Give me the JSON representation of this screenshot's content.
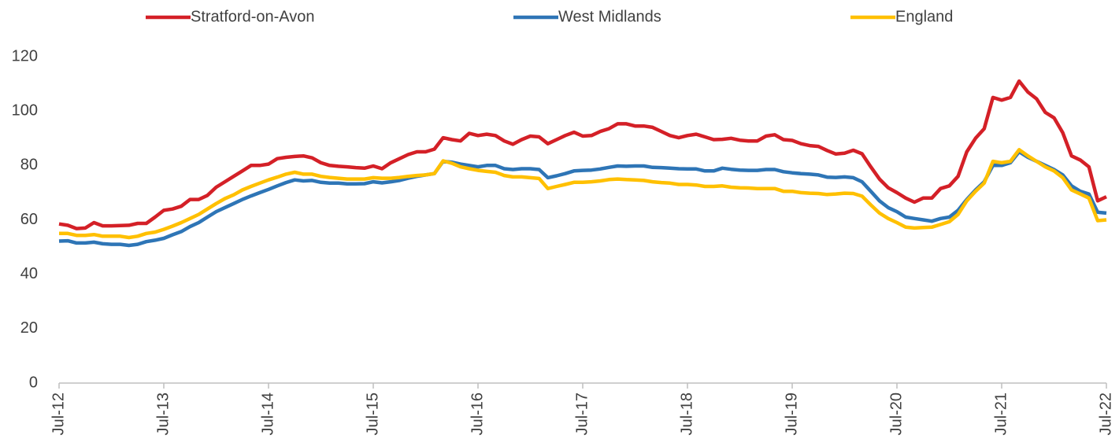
{
  "chart_data": {
    "type": "line",
    "categories": [
      "Jul-12",
      null,
      null,
      null,
      null,
      null,
      null,
      null,
      null,
      null,
      null,
      null,
      "Jul-13",
      null,
      null,
      null,
      null,
      null,
      null,
      null,
      null,
      null,
      null,
      null,
      "Jul-14",
      null,
      null,
      null,
      null,
      null,
      null,
      null,
      null,
      null,
      null,
      null,
      "Jul-15",
      null,
      null,
      null,
      null,
      null,
      null,
      null,
      null,
      null,
      null,
      null,
      "Jul-16",
      null,
      null,
      null,
      null,
      null,
      null,
      null,
      null,
      null,
      null,
      null,
      "Jul-17",
      null,
      null,
      null,
      null,
      null,
      null,
      null,
      null,
      null,
      null,
      null,
      "Jul-18",
      null,
      null,
      null,
      null,
      null,
      null,
      null,
      null,
      null,
      null,
      null,
      "Jul-19",
      null,
      null,
      null,
      null,
      null,
      null,
      null,
      null,
      null,
      null,
      null,
      "Jul-20",
      null,
      null,
      null,
      null,
      null,
      null,
      null,
      null,
      null,
      null,
      null,
      "Jul-21",
      null,
      null,
      null,
      null,
      null,
      null,
      null,
      null,
      null,
      null,
      null,
      "Jul-22"
    ],
    "series": [
      {
        "name": "Stratford-on-Avon",
        "color": "#d42027",
        "values": [
          58.5,
          58,
          56.8,
          57,
          59,
          57.8,
          57.8,
          57.9,
          58,
          58.7,
          58.7,
          61,
          63.5,
          64,
          65,
          67.5,
          67.5,
          69,
          72,
          74,
          76,
          78,
          80,
          80,
          80.5,
          82.5,
          83,
          83.3,
          83.5,
          82.8,
          81,
          80,
          79.7,
          79.5,
          79.2,
          79,
          79.8,
          78.8,
          81,
          82.5,
          84,
          85,
          85,
          86,
          90.2,
          89.5,
          89,
          91.8,
          91,
          91.5,
          91,
          89,
          87.8,
          89.5,
          90.8,
          90.5,
          88,
          89.5,
          91,
          92.2,
          90.8,
          91,
          92.5,
          93.5,
          95.3,
          95.3,
          94.5,
          94.5,
          94,
          92.5,
          91,
          90.2,
          91,
          91.5,
          90.5,
          89.5,
          89.6,
          90,
          89.3,
          89,
          89,
          90.8,
          91.3,
          89.5,
          89.2,
          88,
          87.3,
          87,
          85.5,
          84.2,
          84.5,
          85.6,
          84.3,
          79.5,
          75,
          71.8,
          70,
          68,
          66.5,
          68,
          68,
          71.5,
          72.5,
          76,
          85,
          90,
          93.5,
          105,
          104,
          105,
          111,
          107,
          104.5,
          99.5,
          97.5,
          92,
          83.5,
          82,
          79.5,
          67,
          68.5
        ]
      },
      {
        "name": "West Midlands",
        "color": "#2e75b6",
        "values": [
          52.2,
          52.3,
          51.5,
          51.5,
          51.8,
          51.2,
          51,
          51,
          50.6,
          51,
          52,
          52.5,
          53.2,
          54.5,
          55.7,
          57.5,
          59,
          61,
          63,
          64.5,
          66,
          67.5,
          68.8,
          70,
          71.2,
          72.5,
          73.7,
          74.7,
          74.3,
          74.5,
          73.8,
          73.5,
          73.5,
          73.2,
          73.2,
          73.3,
          74,
          73.6,
          74,
          74.5,
          75.3,
          76,
          76.5,
          77,
          81.5,
          81.2,
          80.5,
          80,
          79.5,
          80,
          80,
          78.8,
          78.5,
          78.8,
          78.8,
          78.5,
          75.5,
          76.2,
          77,
          78,
          78.2,
          78.3,
          78.7,
          79.3,
          79.8,
          79.7,
          79.8,
          79.8,
          79.3,
          79.2,
          79,
          78.8,
          78.7,
          78.7,
          78,
          78,
          79,
          78.6,
          78.3,
          78.2,
          78.2,
          78.5,
          78.5,
          77.7,
          77.3,
          77,
          76.8,
          76.5,
          75.7,
          75.6,
          75.8,
          75.5,
          74,
          70.5,
          67,
          64.5,
          63,
          61,
          60.5,
          60,
          59.5,
          60.5,
          61,
          63.5,
          67.5,
          71,
          74,
          80,
          80,
          81,
          85,
          83,
          81.5,
          80,
          78.5,
          76.5,
          72.5,
          70.5,
          69.5,
          62.8,
          62.5
        ]
      },
      {
        "name": "England",
        "color": "#ffc000",
        "values": [
          55,
          55,
          54.3,
          54.3,
          54.6,
          54,
          54,
          54,
          53.5,
          54,
          55,
          55.5,
          56.5,
          57.7,
          59,
          60.5,
          62,
          64,
          66,
          67.8,
          69.2,
          71,
          72.3,
          73.5,
          74.7,
          75.7,
          76.8,
          77.5,
          76.8,
          76.8,
          76,
          75.6,
          75.3,
          75,
          75,
          75,
          75.5,
          75.3,
          75.3,
          75.6,
          76,
          76.3,
          76.5,
          77,
          81.7,
          80.8,
          79.5,
          78.8,
          78.2,
          77.8,
          77.5,
          76.3,
          75.8,
          75.8,
          75.5,
          75.2,
          71.5,
          72.3,
          73,
          73.8,
          73.8,
          74,
          74.3,
          74.8,
          75,
          74.8,
          74.7,
          74.5,
          74,
          73.7,
          73.5,
          73,
          73,
          72.8,
          72.3,
          72.3,
          72.5,
          72,
          71.8,
          71.7,
          71.5,
          71.5,
          71.5,
          70.5,
          70.5,
          70,
          69.8,
          69.7,
          69.3,
          69.5,
          69.8,
          69.7,
          68.7,
          65.5,
          62.5,
          60.5,
          59,
          57.3,
          57,
          57.2,
          57.3,
          58.3,
          59.3,
          62,
          67,
          70.5,
          73.5,
          81.5,
          81,
          81.5,
          85.8,
          83.5,
          81.5,
          79.5,
          78,
          75.5,
          71,
          69.5,
          68,
          59.7,
          60
        ]
      }
    ],
    "ylim": [
      0,
      120
    ],
    "yticks": [
      0,
      20,
      40,
      60,
      80,
      100,
      120
    ],
    "grid": false,
    "legend": "top"
  }
}
